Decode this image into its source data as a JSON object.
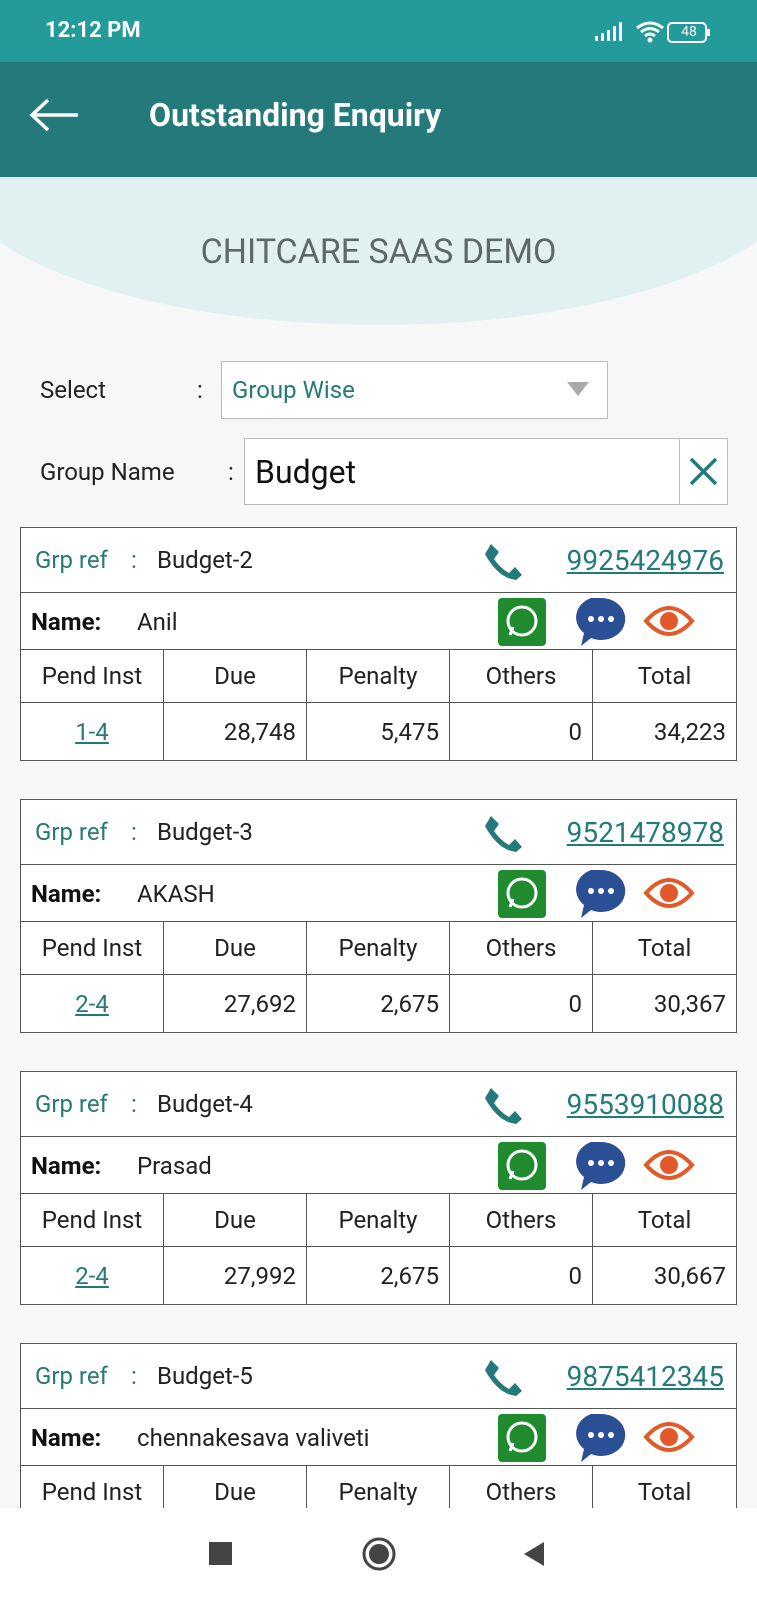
{
  "status_bar": {
    "time": "12:12 PM",
    "battery": "48"
  },
  "header": {
    "title": "Outstanding Enquiry"
  },
  "company": "CHITCARE SAAS DEMO",
  "form": {
    "select_label": "Select",
    "select_sep": ":",
    "select_value": "Group Wise",
    "group_label": "Group Name",
    "group_sep": ":",
    "group_value": "Budget"
  },
  "labels": {
    "grp_ref": "Grp ref",
    "sep": ":",
    "name": "Name:"
  },
  "columns": [
    "Pend Inst",
    "Due",
    "Penalty",
    "Others",
    "Total"
  ],
  "cards": [
    {
      "ref": "Budget-2",
      "phone": "9925424976",
      "name": "Anil",
      "row": [
        "1-4",
        "28,748",
        "5,475",
        "0",
        "34,223"
      ]
    },
    {
      "ref": "Budget-3",
      "phone": "9521478978",
      "name": "AKASH",
      "row": [
        "2-4",
        "27,692",
        "2,675",
        "0",
        "30,367"
      ]
    },
    {
      "ref": "Budget-4",
      "phone": "9553910088",
      "name": "Prasad",
      "row": [
        "2-4",
        "27,992",
        "2,675",
        "0",
        "30,667"
      ]
    },
    {
      "ref": "Budget-5",
      "phone": "9875412345",
      "name": "chennakesava valiveti"
    }
  ]
}
